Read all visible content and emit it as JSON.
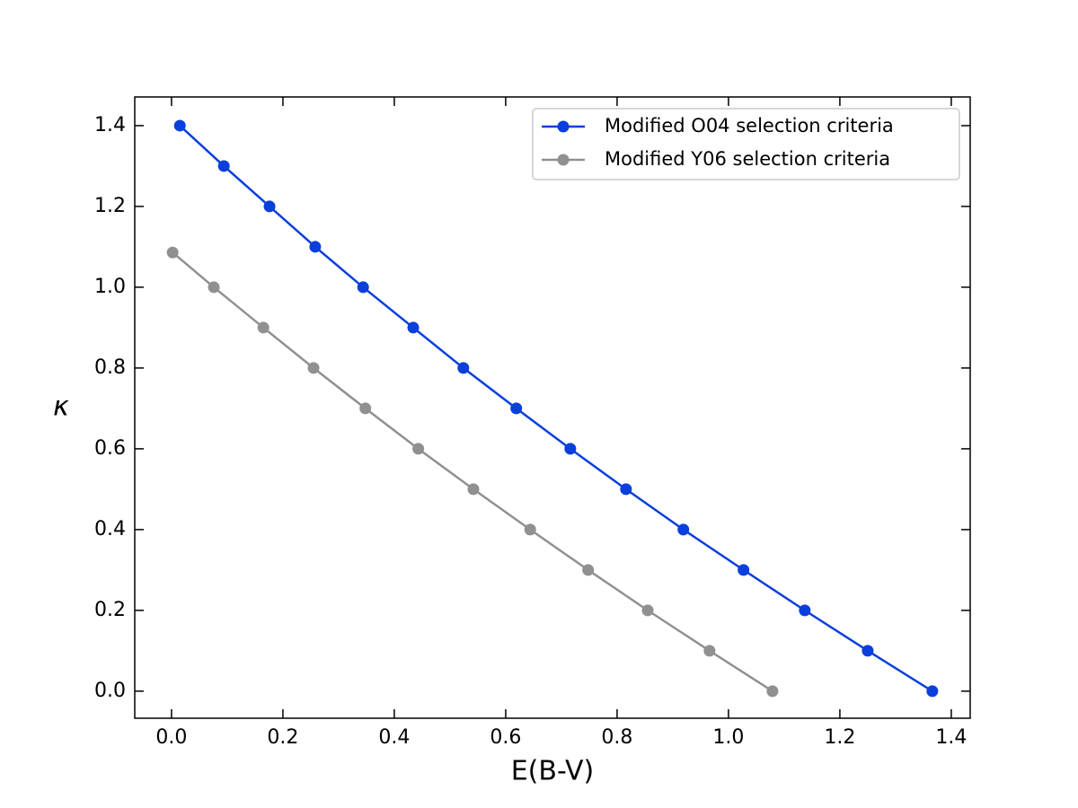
{
  "chart_data": {
    "type": "line",
    "xlabel": "E(B-V)",
    "ylabel": "κ",
    "series": [
      {
        "name": "Modified O04 selection criteria",
        "color": "#0a3fdc",
        "x": [
          0.015,
          0.094,
          0.176,
          0.258,
          0.344,
          0.434,
          0.524,
          0.619,
          0.716,
          0.816,
          0.919,
          1.027,
          1.137,
          1.25,
          1.366
        ],
        "values": [
          1.4,
          1.3,
          1.2,
          1.1,
          1.0,
          0.9,
          0.8,
          0.7,
          0.6,
          0.5,
          0.4,
          0.3,
          0.2,
          0.1,
          0.0
        ]
      },
      {
        "name": "Modified Y06 selection criteria",
        "color": "#909090",
        "x": [
          0.002,
          0.076,
          0.165,
          0.255,
          0.348,
          0.443,
          0.542,
          0.644,
          0.748,
          0.855,
          0.966,
          1.079
        ],
        "values": [
          1.086,
          1.0,
          0.9,
          0.8,
          0.7,
          0.6,
          0.5,
          0.4,
          0.3,
          0.2,
          0.1,
          0.0
        ]
      }
    ],
    "xlim": [
      -0.066,
      1.434
    ],
    "ylim": [
      -0.067,
      1.471
    ],
    "xticks": [
      {
        "value": 0,
        "label": "0.0"
      },
      0.2,
      0.4,
      0.6,
      0.8,
      {
        "value": 1,
        "label": "1.0"
      },
      1.2,
      1.4
    ],
    "yticks": [
      {
        "value": 0,
        "label": "0.0"
      },
      0.2,
      0.4,
      0.6,
      0.8,
      {
        "value": 1,
        "label": "1.0"
      },
      1.2,
      1.4
    ],
    "grid": false,
    "legend": "upper right"
  }
}
